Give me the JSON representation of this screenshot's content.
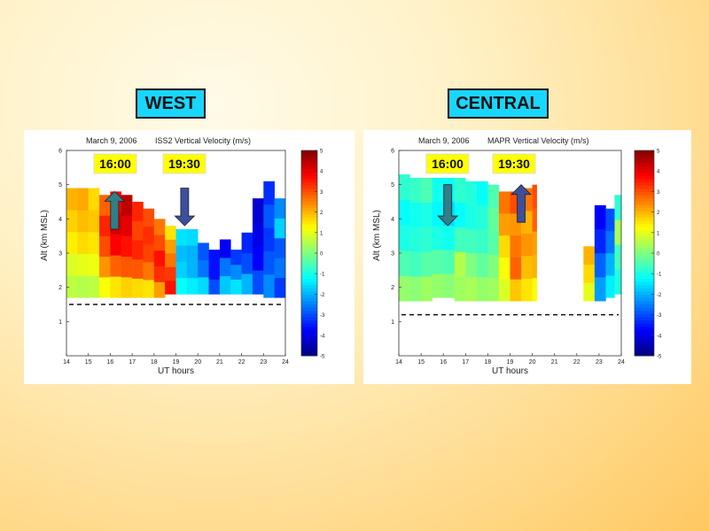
{
  "labels": {
    "west": "WEST",
    "central": "CENTRAL"
  },
  "colormap": "jet",
  "chart_data": [
    {
      "type": "heatmap",
      "site": "WEST",
      "date": "March 9, 2006",
      "title": "ISS2 Vertical Velocity (m/s)",
      "xlabel": "UT hours",
      "ylabel": "Alt (km MSL)",
      "xlim": [
        14,
        24
      ],
      "ylim": [
        0,
        6
      ],
      "xticks": [
        14,
        15,
        16,
        17,
        18,
        19,
        20,
        21,
        22,
        23,
        24
      ],
      "yticks": [
        1,
        2,
        3,
        4,
        5,
        6
      ],
      "colorbar": {
        "min": -5,
        "max": 5,
        "ticks": [
          5,
          4,
          3,
          2,
          1,
          0,
          -1,
          -2,
          -3,
          -4,
          -5
        ]
      },
      "reference_altitude_km": 1.5,
      "annotations": [
        {
          "time": "16:00",
          "arrow": "up",
          "x": 16.2,
          "y_from": 3.7,
          "y_to": 4.8
        },
        {
          "time": "19:30",
          "arrow": "down",
          "x": 19.4,
          "y_from": 4.9,
          "y_to": 3.8
        }
      ],
      "columns": [
        {
          "x0": 14.0,
          "x1": 14.5,
          "bottom": 1.7,
          "top": 4.9,
          "values": [
            0.6,
            0.9,
            1.4,
            1.7,
            2.0
          ]
        },
        {
          "x0": 14.5,
          "x1": 15.0,
          "bottom": 1.7,
          "top": 4.9,
          "values": [
            0.5,
            1.0,
            1.6,
            1.9,
            2.1
          ]
        },
        {
          "x0": 15.0,
          "x1": 15.5,
          "bottom": 1.7,
          "top": 4.9,
          "values": [
            0.6,
            1.1,
            1.5,
            1.8,
            1.6
          ]
        },
        {
          "x0": 15.5,
          "x1": 16.0,
          "bottom": 1.7,
          "top": 4.7,
          "values": [
            1.2,
            2.3,
            3.0,
            3.4,
            2.8
          ]
        },
        {
          "x0": 16.0,
          "x1": 16.5,
          "bottom": 1.7,
          "top": 4.8,
          "values": [
            1.5,
            2.8,
            3.8,
            4.2,
            3.8
          ]
        },
        {
          "x0": 16.5,
          "x1": 17.0,
          "bottom": 1.7,
          "top": 4.7,
          "values": [
            1.7,
            2.9,
            3.6,
            4.0,
            4.4
          ]
        },
        {
          "x0": 17.0,
          "x1": 17.5,
          "bottom": 1.7,
          "top": 4.5,
          "values": [
            1.6,
            2.9,
            3.4,
            3.1,
            3.4
          ]
        },
        {
          "x0": 17.5,
          "x1": 18.0,
          "bottom": 1.7,
          "top": 4.3,
          "values": [
            1.5,
            2.6,
            3.1,
            3.3,
            3.0
          ]
        },
        {
          "x0": 18.0,
          "x1": 18.5,
          "bottom": 1.7,
          "top": 4.0,
          "values": [
            2.2,
            3.3,
            3.6,
            3.0,
            2.6
          ]
        },
        {
          "x0": 18.5,
          "x1": 19.0,
          "bottom": 1.8,
          "top": 3.8,
          "values": [
            3.6,
            3.2,
            2.6,
            2.2,
            1.5
          ]
        },
        {
          "x0": 19.0,
          "x1": 19.5,
          "bottom": 1.8,
          "top": 3.7,
          "values": [
            -1.2,
            -1.7,
            -1.9,
            -1.5
          ]
        },
        {
          "x0": 19.5,
          "x1": 20.0,
          "bottom": 1.8,
          "top": 3.7,
          "values": [
            -1.4,
            -2.0,
            -2.0,
            -1.6
          ]
        },
        {
          "x0": 20.0,
          "x1": 20.5,
          "bottom": 1.8,
          "top": 3.3,
          "values": [
            -1.6,
            -2.6,
            -2.9
          ]
        },
        {
          "x0": 20.5,
          "x1": 21.0,
          "bottom": 1.8,
          "top": 3.1,
          "values": [
            -3.0,
            -3.6,
            -3.6
          ]
        },
        {
          "x0": 21.0,
          "x1": 21.5,
          "bottom": 1.8,
          "top": 3.4,
          "values": [
            -1.8,
            -2.6,
            -3.8
          ]
        },
        {
          "x0": 21.5,
          "x1": 22.0,
          "bottom": 1.8,
          "top": 3.1,
          "values": [
            -1.5,
            -2.4,
            -3.2
          ]
        },
        {
          "x0": 22.0,
          "x1": 22.5,
          "bottom": 1.8,
          "top": 3.6,
          "values": [
            -2.0,
            -3.0,
            -3.4
          ]
        },
        {
          "x0": 22.5,
          "x1": 23.0,
          "bottom": 1.8,
          "top": 4.6,
          "values": [
            -3.0,
            -3.8,
            -4.0,
            -4.2
          ]
        },
        {
          "x0": 23.0,
          "x1": 23.5,
          "bottom": 1.7,
          "top": 5.1,
          "values": [
            -2.4,
            -2.9,
            -3.2,
            -2.9,
            -3.3
          ]
        },
        {
          "x0": 23.5,
          "x1": 24.0,
          "bottom": 1.7,
          "top": 4.6,
          "values": [
            -3.2,
            -2.6,
            -2.9,
            -1.7,
            -2.4
          ]
        }
      ]
    },
    {
      "type": "heatmap",
      "site": "CENTRAL",
      "date": "March 9, 2006",
      "title": "MAPR Vertical Velocity (m/s)",
      "xlabel": "UT hours",
      "ylabel": "Alt (km MSL)",
      "xlim": [
        14,
        24
      ],
      "ylim": [
        0,
        6
      ],
      "xticks": [
        14,
        15,
        16,
        17,
        18,
        19,
        20,
        21,
        22,
        23,
        24
      ],
      "yticks": [
        1,
        2,
        3,
        4,
        5,
        6
      ],
      "colorbar": {
        "min": -5,
        "max": 5,
        "ticks": [
          5,
          4,
          3,
          2,
          1,
          0,
          -1,
          -2,
          -3,
          -4,
          -5
        ]
      },
      "reference_altitude_km": 1.2,
      "annotations": [
        {
          "time": "16:00",
          "arrow": "down",
          "x": 16.2,
          "y_from": 5.0,
          "y_to": 3.8
        },
        {
          "time": "19:30",
          "arrow": "up",
          "x": 19.5,
          "y_from": 3.9,
          "y_to": 5.0
        }
      ],
      "columns": [
        {
          "x0": 14.0,
          "x1": 14.5,
          "bottom": 1.6,
          "top": 5.3,
          "values": [
            0.2,
            -0.5,
            -1.0,
            -1.2,
            -0.8
          ]
        },
        {
          "x0": 14.5,
          "x1": 15.0,
          "bottom": 1.6,
          "top": 5.2,
          "values": [
            0.1,
            -0.6,
            -0.9,
            -1.1,
            -0.7
          ]
        },
        {
          "x0": 15.0,
          "x1": 15.5,
          "bottom": 1.6,
          "top": 5.2,
          "values": [
            0.3,
            -0.4,
            -0.8,
            -1.0,
            -0.5
          ]
        },
        {
          "x0": 15.5,
          "x1": 16.0,
          "bottom": 1.7,
          "top": 5.2,
          "values": [
            0.2,
            -0.4,
            -1.0,
            -1.3,
            -1.1
          ]
        },
        {
          "x0": 16.0,
          "x1": 16.5,
          "bottom": 1.7,
          "top": 5.2,
          "values": [
            0.1,
            -0.5,
            -1.1,
            -1.6,
            -1.2
          ]
        },
        {
          "x0": 16.5,
          "x1": 17.0,
          "bottom": 1.6,
          "top": 5.2,
          "values": [
            0.3,
            0.5,
            -0.6,
            -1.2,
            -0.8
          ]
        },
        {
          "x0": 17.0,
          "x1": 17.5,
          "bottom": 1.6,
          "top": 5.1,
          "values": [
            0.4,
            0.0,
            -0.6,
            -1.0,
            -0.9
          ]
        },
        {
          "x0": 17.5,
          "x1": 18.0,
          "bottom": 1.6,
          "top": 5.1,
          "values": [
            0.2,
            -0.3,
            -0.7,
            -0.9,
            -1.2
          ]
        },
        {
          "x0": 18.0,
          "x1": 18.5,
          "bottom": 1.6,
          "top": 5.0,
          "values": [
            0.3,
            0.0,
            -0.4,
            -0.3,
            -0.5
          ]
        },
        {
          "x0": 18.5,
          "x1": 19.0,
          "bottom": 1.6,
          "top": 4.8,
          "values": [
            0.9,
            1.2,
            1.6,
            2.2,
            2.6
          ]
        },
        {
          "x0": 19.0,
          "x1": 19.5,
          "bottom": 1.6,
          "top": 4.8,
          "values": [
            1.8,
            2.8,
            2.6,
            2.3,
            3.0
          ]
        },
        {
          "x0": 19.5,
          "x1": 20.0,
          "bottom": 1.6,
          "top": 4.9,
          "values": [
            1.5,
            1.9,
            2.3,
            2.0,
            2.6
          ]
        },
        {
          "x0": 20.0,
          "x1": 20.2,
          "bottom": 1.6,
          "top": 5.0,
          "values": [
            1.2,
            2.0,
            2.2,
            2.8,
            3.0
          ]
        },
        {
          "x0": 22.3,
          "x1": 22.8,
          "bottom": 1.6,
          "top": 3.2,
          "values": [
            1.0,
            1.6,
            2.0
          ]
        },
        {
          "x0": 22.8,
          "x1": 23.3,
          "bottom": 1.6,
          "top": 4.4,
          "values": [
            -2.2,
            -2.8,
            -3.4,
            -3.8
          ]
        },
        {
          "x0": 23.3,
          "x1": 23.7,
          "bottom": 1.7,
          "top": 4.3,
          "values": [
            -1.4,
            -2.0,
            -2.6,
            -3.0
          ]
        },
        {
          "x0": 23.7,
          "x1": 24.0,
          "bottom": 1.8,
          "top": 4.7,
          "values": [
            -1.0,
            -0.6,
            0.4,
            -0.8
          ]
        }
      ]
    }
  ]
}
